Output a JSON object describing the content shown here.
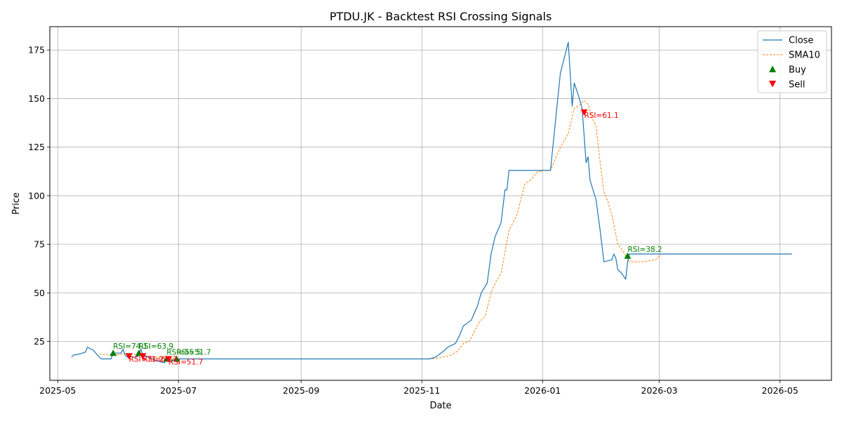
{
  "chart_data": {
    "type": "line",
    "title": "PTDU.JK - Backtest RSI Crossing Signals",
    "xlabel": "Date",
    "ylabel": "Price",
    "xlim": [
      "2025-04-27",
      "2026-05-27"
    ],
    "ylim": [
      5,
      187
    ],
    "grid": true,
    "legend_position": "top-right",
    "x_ticks": [
      "2025-05",
      "2025-07",
      "2025-09",
      "2025-11",
      "2026-01",
      "2026-03",
      "2026-05"
    ],
    "x_tick_dates": [
      "2025-05-01",
      "2025-07-01",
      "2025-09-01",
      "2025-11-01",
      "2026-01-01",
      "2026-03-01",
      "2026-05-01"
    ],
    "y_ticks": [
      25,
      50,
      75,
      100,
      125,
      150,
      175
    ],
    "colors": {
      "close": "#1f77b4",
      "sma": "#ff7f0e",
      "buy": "#008000",
      "sell": "#ff0000",
      "grid": "#b0b0b0"
    },
    "series": [
      {
        "name": "Close",
        "style": "solid",
        "color": "#1f77b4",
        "points": [
          [
            "2025-05-08",
            17
          ],
          [
            "2025-05-09",
            18
          ],
          [
            "2025-05-12",
            18.5
          ],
          [
            "2025-05-15",
            19.5
          ],
          [
            "2025-05-16",
            22
          ],
          [
            "2025-05-19",
            20.5
          ],
          [
            "2025-05-21",
            18
          ],
          [
            "2025-05-22",
            17
          ],
          [
            "2025-05-23",
            16
          ],
          [
            "2025-05-26",
            16
          ],
          [
            "2025-05-28",
            16
          ],
          [
            "2025-05-29",
            19
          ],
          [
            "2025-06-02",
            19
          ],
          [
            "2025-06-03",
            21
          ],
          [
            "2025-06-04",
            18
          ],
          [
            "2025-06-05",
            17
          ],
          [
            "2025-06-10",
            17
          ],
          [
            "2025-06-11",
            18
          ],
          [
            "2025-06-12",
            21
          ],
          [
            "2025-06-13",
            18
          ],
          [
            "2025-06-16",
            17
          ],
          [
            "2025-06-18",
            16
          ],
          [
            "2025-06-20",
            15
          ],
          [
            "2025-06-24",
            14
          ],
          [
            "2025-06-25",
            17
          ],
          [
            "2025-06-27",
            15
          ],
          [
            "2025-06-30",
            16
          ],
          [
            "2025-07-02",
            16
          ],
          [
            "2025-08-01",
            16
          ],
          [
            "2025-09-01",
            16
          ],
          [
            "2025-10-01",
            16
          ],
          [
            "2025-11-05",
            16
          ],
          [
            "2025-11-08",
            17
          ],
          [
            "2025-11-12",
            20
          ],
          [
            "2025-11-14",
            22
          ],
          [
            "2025-11-18",
            24
          ],
          [
            "2025-11-20",
            28
          ],
          [
            "2025-11-22",
            33
          ],
          [
            "2025-11-26",
            36
          ],
          [
            "2025-11-29",
            43
          ],
          [
            "2025-12-01",
            50
          ],
          [
            "2025-12-04",
            55
          ],
          [
            "2025-12-06",
            70
          ],
          [
            "2025-12-08",
            79
          ],
          [
            "2025-12-11",
            86
          ],
          [
            "2025-12-13",
            103
          ],
          [
            "2025-12-14",
            103
          ],
          [
            "2025-12-15",
            113
          ],
          [
            "2025-12-20",
            113
          ],
          [
            "2025-12-25",
            113
          ],
          [
            "2026-01-01",
            113
          ],
          [
            "2026-01-05",
            113
          ],
          [
            "2026-01-10",
            163
          ],
          [
            "2026-01-14",
            179
          ],
          [
            "2026-01-16",
            146
          ],
          [
            "2026-01-17",
            158
          ],
          [
            "2026-01-19",
            152
          ],
          [
            "2026-01-21",
            145
          ],
          [
            "2026-01-23",
            117
          ],
          [
            "2026-01-24",
            120
          ],
          [
            "2026-01-25",
            108
          ],
          [
            "2026-01-28",
            98
          ],
          [
            "2026-01-30",
            83
          ],
          [
            "2026-02-01",
            66
          ],
          [
            "2026-02-05",
            67
          ],
          [
            "2026-02-06",
            70
          ],
          [
            "2026-02-07",
            68
          ],
          [
            "2026-02-08",
            62
          ],
          [
            "2026-02-10",
            60
          ],
          [
            "2026-02-12",
            57
          ],
          [
            "2026-02-13",
            66
          ],
          [
            "2026-02-14",
            70
          ],
          [
            "2026-02-18",
            70
          ],
          [
            "2026-03-01",
            70
          ],
          [
            "2026-04-01",
            70
          ],
          [
            "2026-05-07",
            70
          ]
        ]
      },
      {
        "name": "SMA10",
        "style": "dashed",
        "color": "#ff7f0e",
        "points": [
          [
            "2025-05-22",
            18.5
          ],
          [
            "2025-05-29",
            18
          ],
          [
            "2025-06-04",
            18.5
          ],
          [
            "2025-06-08",
            18.5
          ],
          [
            "2025-06-14",
            17.5
          ],
          [
            "2025-06-20",
            17
          ],
          [
            "2025-06-27",
            16.5
          ],
          [
            "2025-07-02",
            16
          ],
          [
            "2025-08-01",
            16
          ],
          [
            "2025-09-01",
            16
          ],
          [
            "2025-10-01",
            16
          ],
          [
            "2025-11-06",
            16
          ],
          [
            "2025-11-12",
            17
          ],
          [
            "2025-11-16",
            18
          ],
          [
            "2025-11-19",
            20
          ],
          [
            "2025-11-22",
            24
          ],
          [
            "2025-11-25",
            25
          ],
          [
            "2025-11-27",
            29
          ],
          [
            "2025-11-30",
            35
          ],
          [
            "2025-12-03",
            38
          ],
          [
            "2025-12-06",
            50
          ],
          [
            "2025-12-08",
            55
          ],
          [
            "2025-12-11",
            60
          ],
          [
            "2025-12-15",
            82
          ],
          [
            "2025-12-19",
            90
          ],
          [
            "2025-12-23",
            106
          ],
          [
            "2025-12-26",
            108
          ],
          [
            "2025-12-29",
            112
          ],
          [
            "2026-01-01",
            113
          ],
          [
            "2026-01-05",
            113
          ],
          [
            "2026-01-07",
            118
          ],
          [
            "2026-01-10",
            125
          ],
          [
            "2026-01-14",
            132
          ],
          [
            "2026-01-17",
            145
          ],
          [
            "2026-01-19",
            146
          ],
          [
            "2026-01-22",
            149
          ],
          [
            "2026-01-24",
            147
          ],
          [
            "2026-01-26",
            140
          ],
          [
            "2026-01-28",
            136
          ],
          [
            "2026-01-30",
            118
          ],
          [
            "2026-02-01",
            102
          ],
          [
            "2026-02-03",
            97
          ],
          [
            "2026-02-05",
            90
          ],
          [
            "2026-02-08",
            75
          ],
          [
            "2026-02-11",
            71
          ],
          [
            "2026-02-14",
            66
          ],
          [
            "2026-02-20",
            66
          ],
          [
            "2026-02-27",
            67
          ],
          [
            "2026-03-02",
            70
          ],
          [
            "2026-04-01",
            70
          ],
          [
            "2026-05-07",
            70
          ]
        ]
      }
    ],
    "buy_signals": [
      {
        "date": "2025-05-29",
        "value": 19,
        "label": "RSI=74.1"
      },
      {
        "date": "2025-06-11",
        "value": 19,
        "label": "RSI=63.9"
      },
      {
        "date": "2025-06-25",
        "value": 16,
        "label": "RSI=55.5"
      },
      {
        "date": "2025-06-30",
        "value": 16,
        "label": "RSI=51.7"
      },
      {
        "date": "2026-02-13",
        "value": 69,
        "label": "RSI=38.2"
      }
    ],
    "sell_signals": [
      {
        "date": "2025-06-06",
        "value": 17.5,
        "label": "RSI=71.2"
      },
      {
        "date": "2025-06-13",
        "value": 17.5,
        "label": "RSI=61.7"
      },
      {
        "date": "2025-06-26",
        "value": 16,
        "label": "RSI=51.7"
      },
      {
        "date": "2026-01-22",
        "value": 143,
        "label": "RSI=61.1"
      }
    ],
    "legend": [
      "Close",
      "SMA10",
      "Buy",
      "Sell"
    ]
  }
}
